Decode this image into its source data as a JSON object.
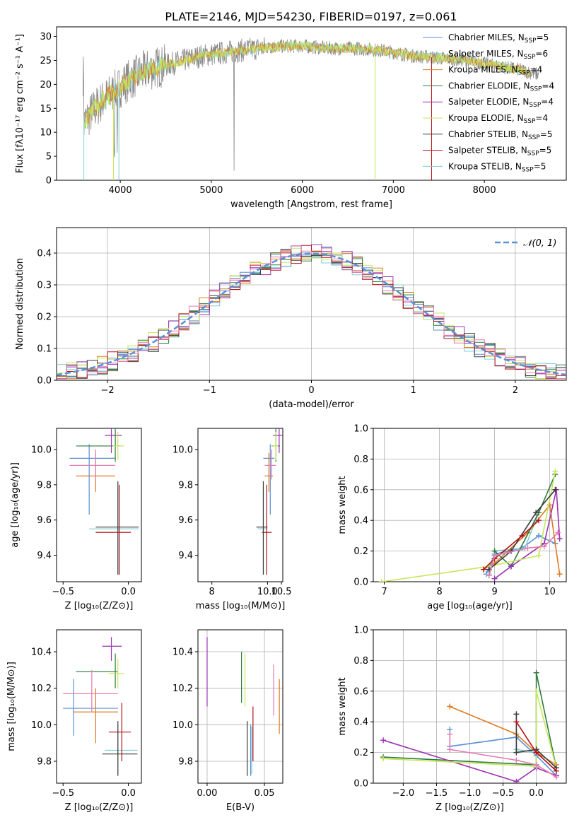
{
  "colors": {
    "s0": "#5b8fd6",
    "s1": "#7fd0d6",
    "s2": "#e07a1f",
    "s3": "#2f7b3b",
    "s4": "#9c33b3",
    "s5": "#c5e75a",
    "s6": "#3b3b3b",
    "s7": "#b3121a",
    "s8": "#e47ab5",
    "gray": "#888888",
    "grid": "#b0b0b0"
  },
  "chart_data": [
    {
      "type": "line",
      "title": "PLATE=2146, MJD=54230, FIBERID=0197, z=0.061",
      "xlabel": "wavelength [Angstrom, rest frame]",
      "ylabel": "Flux [fλ10⁻¹⁷ erg cm⁻² s⁻¹ A⁻¹]",
      "xlim": [
        3300,
        8900
      ],
      "ylim": [
        0,
        32
      ],
      "xticks": [
        "4000",
        "5000",
        "6000",
        "7000",
        "8000"
      ],
      "yticks": [
        "0",
        "5",
        "10",
        "15",
        "20",
        "25",
        "30"
      ],
      "legend_position": "top-right",
      "legend": [
        {
          "name": "Chabrier MILES, N",
          "sub": "SSP",
          "suffix": "=5",
          "color": "s0"
        },
        {
          "name": "Salpeter MILES, N",
          "sub": "SSP",
          "suffix": "=6",
          "color": "s1"
        },
        {
          "name": "Kroupa MILES, N",
          "sub": "SSP",
          "suffix": "=4",
          "color": "s2"
        },
        {
          "name": "Chabrier ELODIE, N",
          "sub": "SSP",
          "suffix": "=4",
          "color": "s3"
        },
        {
          "name": "Salpeter ELODIE, N",
          "sub": "SSP",
          "suffix": "=4",
          "color": "s4"
        },
        {
          "name": "Kroupa ELODIE, N",
          "sub": "SSP",
          "suffix": "=4",
          "color": "s5"
        },
        {
          "name": "Chabrier STELIB, N",
          "sub": "SSP",
          "suffix": "=5",
          "color": "s6"
        },
        {
          "name": "Salpeter STELIB, N",
          "sub": "SSP",
          "suffix": "=5",
          "color": "s7"
        },
        {
          "name": "Kroupa STELIB, N",
          "sub": "SSP",
          "suffix": "=5",
          "color": "s1"
        }
      ],
      "continuum": {
        "x": [
          3600,
          3700,
          3800,
          3900,
          4000,
          4100,
          4200,
          4300,
          4400,
          4500,
          4700,
          4900,
          5100,
          5300,
          5500,
          5800,
          6000,
          6300,
          6600,
          6900,
          7200,
          7500,
          7800,
          8100,
          8400,
          8600
        ],
        "y": [
          12,
          14.5,
          16.5,
          18,
          19.5,
          21,
          22,
          23,
          23.5,
          24,
          25,
          26,
          26.5,
          27,
          27.5,
          28,
          28,
          27.5,
          27.5,
          27,
          26,
          25.5,
          25,
          24,
          23,
          22
        ]
      }
    },
    {
      "type": "histogram",
      "xlabel": "(data-model)/error",
      "ylabel": "Normed distribution",
      "xlim": [
        -2.5,
        2.5
      ],
      "ylim": [
        0,
        0.48
      ],
      "xticks": [
        "−2",
        "−1",
        "0",
        "1",
        "2"
      ],
      "yticks": [
        "0.0",
        "0.1",
        "0.2",
        "0.3",
        "0.4"
      ],
      "gaussian_label": "𝒩(0, 1)",
      "gaussian_color": "s0",
      "legend_position": "top-right",
      "bin_width": 0.1
    },
    {
      "type": "scatter",
      "panel": "age-vs-Z",
      "xlabel": "Z [log₁₀(Z/Z⊙)]",
      "ylabel": "age  [log₁₀(age/yr)]",
      "xlim": [
        -0.55,
        0.1
      ],
      "ylim": [
        9.25,
        10.12
      ],
      "xticks": [
        "−0.5",
        "0.0"
      ],
      "yticks": [
        "9.4",
        "9.6",
        "9.8",
        "10.0"
      ],
      "points": [
        {
          "c": "s0",
          "x": -0.3,
          "xe": [
            -0.45,
            -0.1
          ],
          "y": 9.95,
          "ye": [
            9.63,
            10.03
          ]
        },
        {
          "c": "s1",
          "x": -0.08,
          "xe": [
            -0.3,
            0.08
          ],
          "y": 9.55,
          "ye": [
            9.29,
            9.79
          ]
        },
        {
          "c": "s2",
          "x": -0.25,
          "xe": [
            -0.4,
            -0.1
          ],
          "y": 9.85,
          "ye": [
            9.76,
            9.98
          ]
        },
        {
          "c": "s3",
          "x": -0.1,
          "xe": [
            -0.4,
            -0.05
          ],
          "y": 10.02,
          "ye": [
            9.93,
            10.12
          ]
        },
        {
          "c": "s4",
          "x": -0.13,
          "xe": [
            -0.18,
            -0.05
          ],
          "y": 10.08,
          "ye": [
            9.98,
            10.12
          ]
        },
        {
          "c": "s5",
          "x": -0.08,
          "xe": [
            -0.12,
            -0.03
          ],
          "y": 10.02,
          "ye": [
            9.94,
            10.1
          ]
        },
        {
          "c": "s6",
          "x": -0.08,
          "xe": [
            -0.25,
            0.08
          ],
          "y": 9.56,
          "ye": [
            9.29,
            9.82
          ]
        },
        {
          "c": "s7",
          "x": -0.07,
          "xe": [
            -0.25,
            0.02
          ],
          "y": 9.53,
          "ye": [
            9.29,
            9.8
          ]
        },
        {
          "c": "s8",
          "x": -0.25,
          "xe": [
            -0.45,
            -0.1
          ],
          "y": 9.91,
          "ye": [
            9.83,
            10.0
          ]
        }
      ]
    },
    {
      "type": "scatter",
      "panel": "age-vs-mass",
      "xlabel": "mass [log₁₀(M/M⊙)]",
      "ylabel": "",
      "xlim": [
        7.5,
        10.55
      ],
      "ylim": [
        9.25,
        10.12
      ],
      "xticks": [
        "8",
        "10.0",
        "10.5"
      ],
      "yticks": [
        "9.4",
        "9.6",
        "9.8",
        "10.0"
      ],
      "points": [
        {
          "c": "s0",
          "x": 10.1,
          "xe": [
            9.85,
            10.25
          ],
          "y": 9.95,
          "ye": [
            9.63,
            10.03
          ]
        },
        {
          "c": "s1",
          "x": 9.85,
          "xe": [
            9.65,
            10.0
          ],
          "y": 9.55,
          "ye": [
            9.29,
            9.79
          ]
        },
        {
          "c": "s2",
          "x": 10.05,
          "xe": [
            9.9,
            10.2
          ],
          "y": 9.85,
          "ye": [
            9.76,
            9.98
          ]
        },
        {
          "c": "s3",
          "x": 10.3,
          "xe": [
            10.15,
            10.45
          ],
          "y": 10.02,
          "ye": [
            9.93,
            10.12
          ]
        },
        {
          "c": "s4",
          "x": 10.42,
          "xe": [
            10.2,
            10.55
          ],
          "y": 10.08,
          "ye": [
            9.98,
            10.12
          ]
        },
        {
          "c": "s5",
          "x": 10.3,
          "xe": [
            10.18,
            10.38
          ],
          "y": 10.02,
          "ye": [
            9.94,
            10.1
          ]
        },
        {
          "c": "s6",
          "x": 9.85,
          "xe": [
            9.6,
            10.0
          ],
          "y": 9.56,
          "ye": [
            9.29,
            9.82
          ]
        },
        {
          "c": "s7",
          "x": 9.97,
          "xe": [
            9.8,
            10.15
          ],
          "y": 9.53,
          "ye": [
            9.29,
            9.8
          ]
        },
        {
          "c": "s8",
          "x": 10.15,
          "xe": [
            9.9,
            10.3
          ],
          "y": 9.91,
          "ye": [
            9.83,
            10.0
          ]
        }
      ]
    },
    {
      "type": "line",
      "panel": "weight-vs-age",
      "xlabel": "age  [log₁₀(age/yr)]",
      "ylabel": "mass weight",
      "xlim": [
        6.8,
        10.3
      ],
      "ylim": [
        0,
        1.0
      ],
      "xticks": [
        "7",
        "8",
        "9",
        "10"
      ],
      "yticks": [
        "0.0",
        "0.2",
        "0.4",
        "0.6",
        "0.8",
        "1.0"
      ],
      "series": [
        {
          "c": "s0",
          "x": [
            8.85,
            9.0,
            9.5,
            9.8,
            10.1
          ],
          "y": [
            0.05,
            0.18,
            0.22,
            0.3,
            0.25
          ]
        },
        {
          "c": "s1",
          "x": [
            8.9,
            9.0,
            9.55,
            9.8
          ],
          "y": [
            0.05,
            0.2,
            0.22,
            0.45
          ]
        },
        {
          "c": "s2",
          "x": [
            8.8,
            9.0,
            9.6,
            10.0,
            10.18
          ],
          "y": [
            0.08,
            0.12,
            0.32,
            0.5,
            0.05
          ]
        },
        {
          "c": "s3",
          "x": [
            9.0,
            9.3,
            9.8,
            10.1
          ],
          "y": [
            0.2,
            0.1,
            0.45,
            0.7
          ]
        },
        {
          "c": "s4",
          "x": [
            9.0,
            9.3,
            9.9,
            10.12,
            10.18
          ],
          "y": [
            0.02,
            0.1,
            0.25,
            0.6,
            0.28
          ]
        },
        {
          "c": "s5",
          "x": [
            6.95,
            8.9,
            9.8,
            10.1
          ],
          "y": [
            0.0,
            0.1,
            0.17,
            0.72
          ]
        },
        {
          "c": "s6",
          "x": [
            8.9,
            9.3,
            9.75,
            10.1
          ],
          "y": [
            0.08,
            0.2,
            0.45,
            0.6
          ]
        },
        {
          "c": "s7",
          "x": [
            8.8,
            9.0,
            9.5,
            9.8
          ],
          "y": [
            0.08,
            0.15,
            0.3,
            0.4
          ]
        },
        {
          "c": "s8",
          "x": [
            8.9,
            9.0,
            9.6,
            9.9,
            10.15
          ],
          "y": [
            0.04,
            0.17,
            0.22,
            0.23,
            0.32
          ]
        }
      ]
    },
    {
      "type": "scatter",
      "panel": "mass-vs-Z",
      "xlabel": "Z [log₁₀(Z/Z⊙)]",
      "ylabel": "mass [log₁₀(M/M⊙)]",
      "xlim": [
        -0.55,
        0.1
      ],
      "ylim": [
        9.68,
        10.52
      ],
      "xticks": [
        "−0.5",
        "0.0"
      ],
      "yticks": [
        "9.8",
        "10.0",
        "10.2",
        "10.4"
      ],
      "points": [
        {
          "c": "s0",
          "x": -0.42,
          "xe": [
            -0.5,
            -0.08
          ],
          "y": 10.09,
          "ye": [
            9.94,
            10.25
          ]
        },
        {
          "c": "s1",
          "x": -0.08,
          "xe": [
            -0.18,
            0.07
          ],
          "y": 9.86,
          "ye": [
            9.73,
            10.0
          ]
        },
        {
          "c": "s2",
          "x": -0.25,
          "xe": [
            -0.42,
            -0.08
          ],
          "y": 10.07,
          "ye": [
            9.9,
            10.2
          ]
        },
        {
          "c": "s3",
          "x": -0.1,
          "xe": [
            -0.4,
            -0.08
          ],
          "y": 10.29,
          "ye": [
            10.2,
            10.39
          ]
        },
        {
          "c": "s4",
          "x": -0.13,
          "xe": [
            -0.2,
            -0.05
          ],
          "y": 10.43,
          "ye": [
            10.35,
            10.48
          ]
        },
        {
          "c": "s5",
          "x": -0.08,
          "xe": [
            -0.15,
            -0.03
          ],
          "y": 10.28,
          "ye": [
            10.2,
            10.36
          ]
        },
        {
          "c": "s6",
          "x": -0.08,
          "xe": [
            -0.2,
            0.07
          ],
          "y": 9.84,
          "ye": [
            9.72,
            10.02
          ]
        },
        {
          "c": "s7",
          "x": -0.05,
          "xe": [
            -0.15,
            0.02
          ],
          "y": 9.96,
          "ye": [
            9.8,
            10.12
          ]
        },
        {
          "c": "s8",
          "x": -0.28,
          "xe": [
            -0.5,
            -0.08
          ],
          "y": 10.17,
          "ye": [
            10.07,
            10.3
          ]
        }
      ]
    },
    {
      "type": "scatter",
      "panel": "mass-vs-EBV",
      "xlabel": "E(B-V)",
      "ylabel": "",
      "xlim": [
        -0.008,
        0.066
      ],
      "ylim": [
        9.68,
        10.52
      ],
      "xticks": [
        "0.00",
        "0.05"
      ],
      "yticks": [
        "9.8",
        "10.0",
        "10.2",
        "10.4"
      ],
      "points": [
        {
          "c": "s0",
          "x": 0.038,
          "ye": [
            9.72,
            10.0
          ]
        },
        {
          "c": "s1",
          "x": 0.039,
          "ye": [
            9.73,
            9.99
          ]
        },
        {
          "c": "s2",
          "x": 0.063,
          "ye": [
            9.95,
            10.25
          ]
        },
        {
          "c": "s3",
          "x": 0.03,
          "ye": [
            10.12,
            10.4
          ]
        },
        {
          "c": "s4",
          "x": 0.0,
          "ye": [
            10.1,
            10.48
          ]
        },
        {
          "c": "s5",
          "x": 0.033,
          "ye": [
            10.1,
            10.39
          ]
        },
        {
          "c": "s6",
          "x": 0.035,
          "ye": [
            9.72,
            10.02
          ]
        },
        {
          "c": "s7",
          "x": 0.04,
          "ye": [
            9.8,
            10.1
          ]
        },
        {
          "c": "s8",
          "x": 0.058,
          "ye": [
            10.05,
            10.33
          ]
        }
      ]
    },
    {
      "type": "line",
      "panel": "weight-vs-Z",
      "xlabel": "Z [log₁₀(Z/Z⊙)]",
      "ylabel": "mass weight",
      "xlim": [
        -2.45,
        0.45
      ],
      "ylim": [
        0,
        1.0
      ],
      "xticks": [
        "−2.0",
        "−1.5",
        "−1.0",
        "−0.5",
        "0.0"
      ],
      "yticks": [
        "0.0",
        "0.2",
        "0.4",
        "0.6",
        "0.8",
        "1.0"
      ],
      "series": [
        {
          "c": "s0",
          "x": [
            -1.3,
            -1.3,
            -0.3,
            0.0,
            0.3
          ],
          "y": [
            0.35,
            0.24,
            0.3,
            0.18,
            0.05
          ]
        },
        {
          "c": "s1",
          "x": [
            -0.3,
            -0.3,
            0.0,
            0.3
          ],
          "y": [
            0.45,
            0.22,
            0.2,
            0.08
          ]
        },
        {
          "c": "s2",
          "x": [
            -1.3,
            -0.3,
            0.0,
            0.3
          ],
          "y": [
            0.5,
            0.32,
            0.2,
            0.12
          ]
        },
        {
          "c": "s3",
          "x": [
            -2.3,
            0.0,
            0.0,
            0.3
          ],
          "y": [
            0.17,
            0.12,
            0.72,
            0.1
          ]
        },
        {
          "c": "s4",
          "x": [
            -2.3,
            -0.3,
            0.0,
            0.3
          ],
          "y": [
            0.28,
            0.01,
            0.1,
            0.05
          ]
        },
        {
          "c": "s5",
          "x": [
            -2.3,
            0.0,
            0.0,
            0.3
          ],
          "y": [
            0.16,
            0.11,
            0.6,
            0.1
          ]
        },
        {
          "c": "s6",
          "x": [
            -0.3,
            -0.3,
            0.0,
            0.3
          ],
          "y": [
            0.45,
            0.2,
            0.22,
            0.1
          ]
        },
        {
          "c": "s7",
          "x": [
            -0.3,
            0.0,
            0.3
          ],
          "y": [
            0.4,
            0.2,
            0.08
          ]
        },
        {
          "c": "s8",
          "x": [
            -1.3,
            -1.3,
            -0.3,
            0.0,
            0.3
          ],
          "y": [
            0.32,
            0.22,
            0.15,
            0.12,
            0.04
          ]
        }
      ]
    }
  ]
}
